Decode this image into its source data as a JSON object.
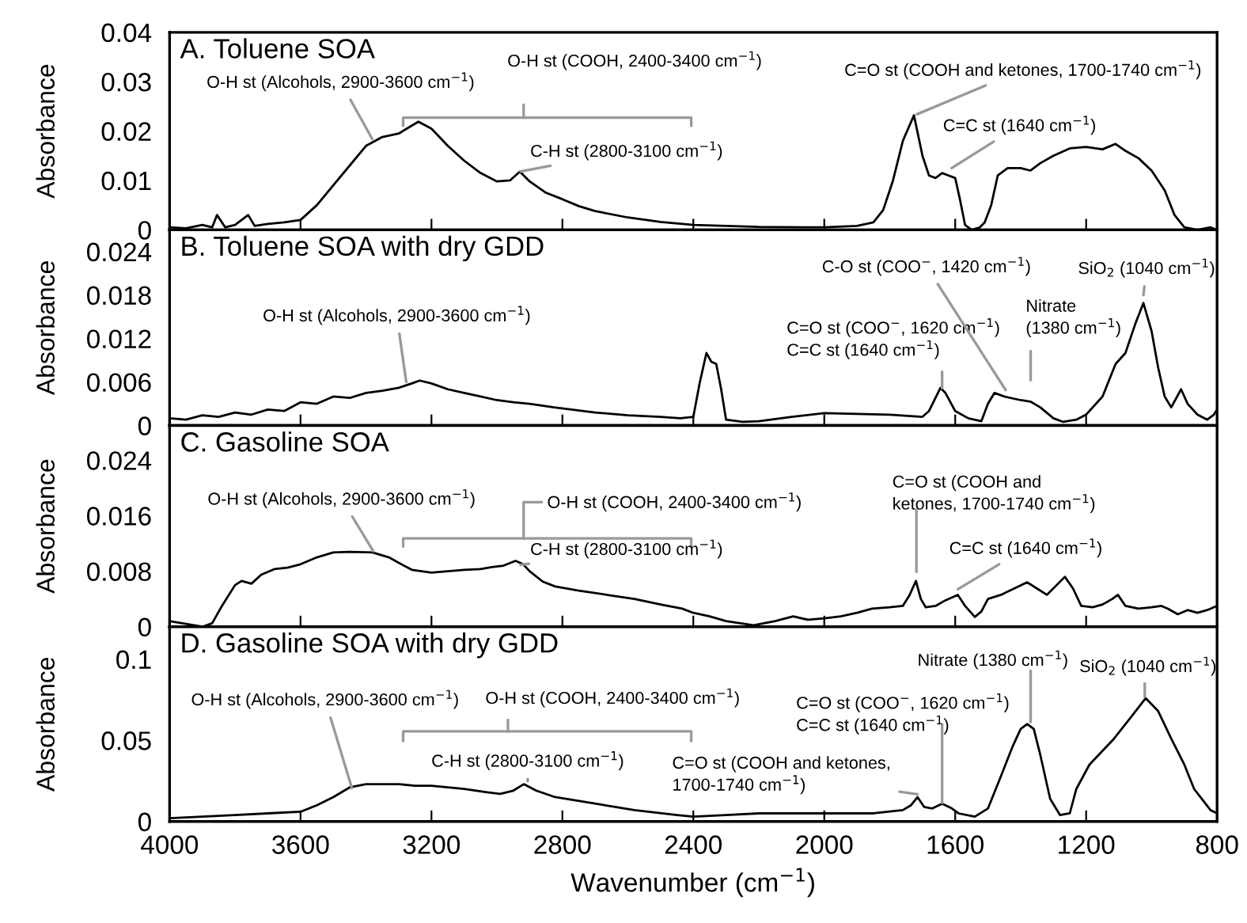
{
  "chart_data": [
    {
      "type": "line",
      "title": "A. Toluene SOA",
      "ylabel": "Absorbance",
      "xlim": [
        4000,
        800
      ],
      "xticks": [
        4000,
        3600,
        3200,
        2800,
        2400,
        2000,
        1600,
        1200,
        800
      ],
      "ylim": [
        0,
        0.04
      ],
      "yticks": [
        0,
        0.01,
        0.02,
        0.03,
        0.04
      ],
      "tick_labels": "y",
      "grid": false,
      "legend": false,
      "series": [
        {
          "color": "#000000",
          "x": [
            4000,
            3950,
            3900,
            3870,
            3855,
            3830,
            3800,
            3760,
            3740,
            3700,
            3650,
            3600,
            3550,
            3500,
            3450,
            3400,
            3350,
            3300,
            3240,
            3200,
            3150,
            3100,
            3050,
            3000,
            2960,
            2930,
            2900,
            2850,
            2800,
            2750,
            2700,
            2600,
            2500,
            2400,
            2200,
            2000,
            1900,
            1850,
            1820,
            1790,
            1760,
            1726,
            1700,
            1680,
            1660,
            1640,
            1620,
            1600,
            1585,
            1570,
            1550,
            1525,
            1510,
            1490,
            1470,
            1440,
            1400,
            1370,
            1340,
            1300,
            1250,
            1200,
            1150,
            1110,
            1080,
            1040,
            1000,
            960,
            930,
            900,
            860,
            820,
            800
          ],
          "values": [
            0.0005,
            0.0003,
            0.001,
            0.0005,
            0.003,
            0.0005,
            0.001,
            0.003,
            0.0008,
            0.0012,
            0.0015,
            0.002,
            0.005,
            0.009,
            0.013,
            0.017,
            0.0188,
            0.0195,
            0.0219,
            0.0205,
            0.017,
            0.014,
            0.0115,
            0.0098,
            0.01,
            0.0118,
            0.0098,
            0.0075,
            0.0062,
            0.0048,
            0.0038,
            0.0025,
            0.0016,
            0.001,
            0.0006,
            0.0005,
            0.0008,
            0.0015,
            0.004,
            0.01,
            0.018,
            0.0232,
            0.015,
            0.011,
            0.0105,
            0.0115,
            0.011,
            0.0105,
            0.006,
            0.001,
            0,
            0.0005,
            0.0015,
            0.005,
            0.011,
            0.0125,
            0.0125,
            0.012,
            0.0135,
            0.015,
            0.0165,
            0.0168,
            0.0163,
            0.0174,
            0.016,
            0.0145,
            0.012,
            0.008,
            0.003,
            0.0005,
            0,
            0.0005,
            0
          ]
        }
      ],
      "annotations": [
        {
          "text": "O-H st (Alcohols, 2900-3600 cm$^{−1}$)",
          "x": 3381,
          "y": 0.0184
        },
        "O-H st (COOH, 2400-3400 cm$^{−1}$)",
        {
          "text": "C-H st (2800-3100 cm$^{−1}$)",
          "x": 2928,
          "y": 0.0118
        },
        {
          "text": "C=O st (COOH and ketones, 1700-1740 cm$^{−1}$)",
          "x": 1717,
          "y": 0.0234
        },
        {
          "text": "C=C st (1640 cm$^{−1}$)",
          "x": 1611,
          "y": 0.0125
        }
      ]
    },
    {
      "type": "line",
      "title": "B. Toluene SOA with dry GDD",
      "ylabel": "Absorbance",
      "xlim": [
        4000,
        800
      ],
      "xticks": [
        4000,
        3600,
        3200,
        2800,
        2400,
        2000,
        1600,
        1200,
        800
      ],
      "ylim": [
        0,
        0.027
      ],
      "yticks": [
        0,
        0.006,
        0.012,
        0.018,
        0.024
      ],
      "tick_labels": "y",
      "grid": false,
      "legend": false,
      "series": [
        {
          "color": "#000000",
          "x": [
            4000,
            3950,
            3900,
            3850,
            3800,
            3750,
            3700,
            3650,
            3600,
            3550,
            3500,
            3450,
            3400,
            3350,
            3300,
            3260,
            3236,
            3200,
            3150,
            3100,
            3050,
            3000,
            2950,
            2900,
            2825,
            2700,
            2600,
            2500,
            2440,
            2400,
            2380,
            2360,
            2345,
            2330,
            2315,
            2300,
            2250,
            2200,
            2100,
            2000,
            1900,
            1800,
            1700,
            1680,
            1645,
            1630,
            1600,
            1560,
            1520,
            1500,
            1480,
            1450,
            1400,
            1370,
            1340,
            1300,
            1270,
            1230,
            1200,
            1150,
            1110,
            1080,
            1050,
            1025,
            1000,
            980,
            960,
            940,
            910,
            890,
            860,
            830,
            810,
            800
          ],
          "values": [
            0.001,
            0.0008,
            0.0014,
            0.0012,
            0.0018,
            0.0015,
            0.0022,
            0.002,
            0.0032,
            0.003,
            0.004,
            0.0038,
            0.0045,
            0.0048,
            0.0052,
            0.0058,
            0.0062,
            0.0058,
            0.005,
            0.0045,
            0.004,
            0.0035,
            0.0032,
            0.003,
            0.0025,
            0.0018,
            0.0014,
            0.0012,
            0.001,
            0.0012,
            0.006,
            0.01,
            0.0088,
            0.0085,
            0.005,
            0.0008,
            0.0005,
            0.0006,
            0.0012,
            0.0017,
            0.0016,
            0.0015,
            0.0012,
            0.002,
            0.0052,
            0.0045,
            0.002,
            0.001,
            0.0006,
            0.003,
            0.0045,
            0.004,
            0.0035,
            0.0033,
            0.0025,
            0.001,
            0.0005,
            0.0008,
            0.0015,
            0.004,
            0.0085,
            0.01,
            0.014,
            0.0169,
            0.013,
            0.008,
            0.004,
            0.0025,
            0.005,
            0.003,
            0.0015,
            0.0008,
            0.0015,
            0.0022
          ]
        }
      ],
      "annotations": [
        {
          "text": "O-H st (Alcohols, 2900-3600 cm$^{−1}$)",
          "x": 3277,
          "y": 0.006
        },
        "C=O st (COO$^{−}$, 1620 cm$^{−1}$)\nC=C st (1640 cm$^{−1}$)",
        {
          "text": "C-O st (COO$^{−}$, 1420 cm$^{−1}$)",
          "x": 1446,
          "y": 0.0049
        },
        "Nitrate\n(1380 cm$^{−1}$)",
        {
          "text": "SiO$_{2}$ (1040 cm$^{−1}$)",
          "x": 1025,
          "y": 0.018
        }
      ]
    },
    {
      "type": "line",
      "title": "C. Gasoline SOA",
      "ylabel": "Absorbance",
      "xlim": [
        4000,
        800
      ],
      "xticks": [
        4000,
        3600,
        3200,
        2800,
        2400,
        2000,
        1600,
        1200,
        800
      ],
      "ylim": [
        0,
        0.029
      ],
      "yticks": [
        0,
        0.008,
        0.016,
        0.024
      ],
      "tick_labels": "y",
      "grid": false,
      "legend": false,
      "series": [
        {
          "color": "#000000",
          "x": [
            4000,
            3950,
            3900,
            3870,
            3840,
            3800,
            3780,
            3750,
            3720,
            3680,
            3640,
            3600,
            3550,
            3500,
            3450,
            3380,
            3330,
            3300,
            3260,
            3200,
            3150,
            3100,
            3050,
            3015,
            2980,
            2943,
            2920,
            2900,
            2860,
            2822,
            2750,
            2650,
            2580,
            2500,
            2434,
            2400,
            2350,
            2300,
            2216,
            2150,
            2095,
            2050,
            2000,
            1950,
            1900,
            1854,
            1800,
            1760,
            1740,
            1720,
            1705,
            1690,
            1660,
            1630,
            1592,
            1570,
            1540,
            1520,
            1500,
            1460,
            1420,
            1380,
            1350,
            1320,
            1290,
            1265,
            1240,
            1215,
            1180,
            1150,
            1120,
            1103,
            1080,
            1040,
            1000,
            970,
            950,
            920,
            890,
            860,
            830,
            800
          ],
          "values": [
            0.0008,
            0.0004,
            0,
            0.0005,
            0.003,
            0.006,
            0.0066,
            0.0062,
            0.0075,
            0.0083,
            0.0085,
            0.009,
            0.01,
            0.0107,
            0.0108,
            0.0107,
            0.01,
            0.0092,
            0.0082,
            0.0078,
            0.008,
            0.0082,
            0.0083,
            0.0086,
            0.0088,
            0.0095,
            0.009,
            0.008,
            0.0065,
            0.0058,
            0.0052,
            0.0045,
            0.004,
            0.0032,
            0.0026,
            0.002,
            0.0015,
            0.0008,
            0.0002,
            0.0008,
            0.0015,
            0.001,
            0.0012,
            0.0015,
            0.002,
            0.0026,
            0.0028,
            0.003,
            0.0045,
            0.0066,
            0.004,
            0.0028,
            0.003,
            0.0038,
            0.0046,
            0.003,
            0.0014,
            0.0022,
            0.004,
            0.0046,
            0.0055,
            0.0064,
            0.0055,
            0.0046,
            0.006,
            0.0072,
            0.0055,
            0.003,
            0.0028,
            0.0032,
            0.004,
            0.0046,
            0.003,
            0.0026,
            0.0028,
            0.003,
            0.0026,
            0.0018,
            0.0024,
            0.002,
            0.0024,
            0.003
          ]
        }
      ],
      "annotations": [
        {
          "text": "O-H st (Alcohols, 2900-3600 cm$^{−1}$)",
          "x": 3378,
          "y": 0.0109
        },
        "O-H st (COOH, 2400-3400 cm$^{−1}$)",
        {
          "text": "C-H st (2800-3100 cm$^{−1}$)",
          "x": 2928,
          "y": 0.0089
        },
        "C=O st (COOH and\nketones, 1700-1740 cm$^{−1}$)",
        {
          "text": "C=C st (1640 cm$^{−1}$)",
          "x": 1592,
          "y": 0.0054
        }
      ]
    },
    {
      "type": "line",
      "title": "D. Gasoline SOA with dry GDD",
      "ylabel": "Absorbance",
      "xlabel": "Wavenumber (cm$^{−1}$)",
      "xlim": [
        4000,
        800
      ],
      "xticks": [
        4000,
        3600,
        3200,
        2800,
        2400,
        2000,
        1600,
        1200,
        800
      ],
      "ylim": [
        0,
        0.12
      ],
      "yticks": [
        0,
        0.05,
        0.1
      ],
      "grid": false,
      "legend": false,
      "series": [
        {
          "color": "#000000",
          "x": [
            4000,
            3900,
            3800,
            3700,
            3600,
            3550,
            3500,
            3450,
            3400,
            3350,
            3300,
            3250,
            3200,
            3100,
            3030,
            2990,
            2950,
            2918,
            2880,
            2822,
            2700,
            2580,
            2450,
            2400,
            2300,
            2200,
            2100,
            2000,
            1850,
            1760,
            1735,
            1715,
            1695,
            1670,
            1640,
            1610,
            1590,
            1540,
            1500,
            1466,
            1425,
            1400,
            1380,
            1360,
            1340,
            1310,
            1280,
            1250,
            1230,
            1190,
            1115,
            1060,
            1018,
            980,
            940,
            900,
            870,
            820,
            800
          ],
          "values": [
            0.002,
            0.003,
            0.004,
            0.005,
            0.006,
            0.01,
            0.015,
            0.021,
            0.023,
            0.023,
            0.023,
            0.022,
            0.022,
            0.02,
            0.018,
            0.017,
            0.019,
            0.023,
            0.019,
            0.015,
            0.011,
            0.007,
            0.004,
            0.003,
            0.004,
            0.005,
            0.005,
            0.005,
            0.005,
            0.007,
            0.01,
            0.015,
            0.009,
            0.008,
            0.011,
            0.008,
            0.005,
            0.003,
            0.008,
            0.025,
            0.046,
            0.057,
            0.06,
            0.057,
            0.041,
            0.014,
            0.004,
            0.005,
            0.02,
            0.035,
            0.051,
            0.065,
            0.076,
            0.068,
            0.051,
            0.035,
            0.02,
            0.007,
            0.005
          ]
        }
      ],
      "annotations": [
        {
          "text": "O-H st (Alcohols, 2900-3600 cm$^{−1}$)",
          "x": 3443,
          "y": 0.0205
        },
        "O-H st (COOH, 2400-3400 cm$^{−1}$)",
        {
          "text": "C-H st (2800-3100 cm$^{−1}$)",
          "x": 2906,
          "y": 0.0247
        },
        {
          "text": "C=O st (COOH and ketones,\n1700-1740 cm$^{−1}$)",
          "x": 1715,
          "y": 0.0168
        },
        "C=O st (COO$^{−}$, 1620 cm$^{−1}$)\nC=C st (1640 cm$^{−1}$)",
        "Nitrate (1380 cm$^{−1}$)",
        "SiO$_{2}$ (1040 cm$^{−1}$)"
      ]
    }
  ]
}
